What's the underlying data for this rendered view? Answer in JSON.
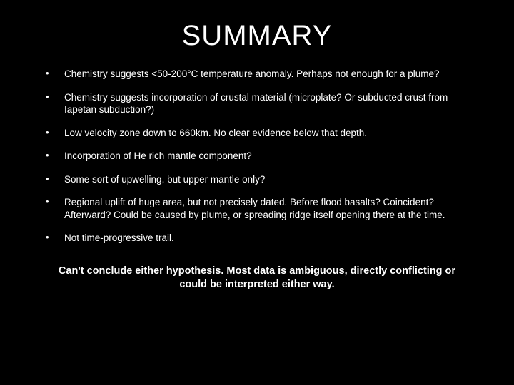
{
  "slide": {
    "background_color": "#000000",
    "text_color": "#ffffff",
    "title": "SUMMARY",
    "title_fontsize": 40,
    "bullet_fontsize": 13.5,
    "conclusion_fontsize": 14.5,
    "bullets": [
      "Chemistry suggests <50-200°C temperature anomaly. Perhaps not enough for a plume?",
      "Chemistry suggests incorporation of crustal material (microplate? Or subducted crust from Iapetan subduction?)",
      "Low velocity zone down to 660km. No clear evidence below that depth.",
      "Incorporation of He rich mantle component?",
      "Some sort of upwelling, but upper mantle only?",
      "Regional uplift of huge area, but not precisely dated. Before flood basalts? Coincident? Afterward? Could be caused by plume, or spreading ridge itself opening there at the time.",
      "Not time-progressive trail."
    ],
    "conclusion": "Can't conclude either hypothesis. Most data is ambiguous, directly conflicting or could be interpreted either way."
  }
}
